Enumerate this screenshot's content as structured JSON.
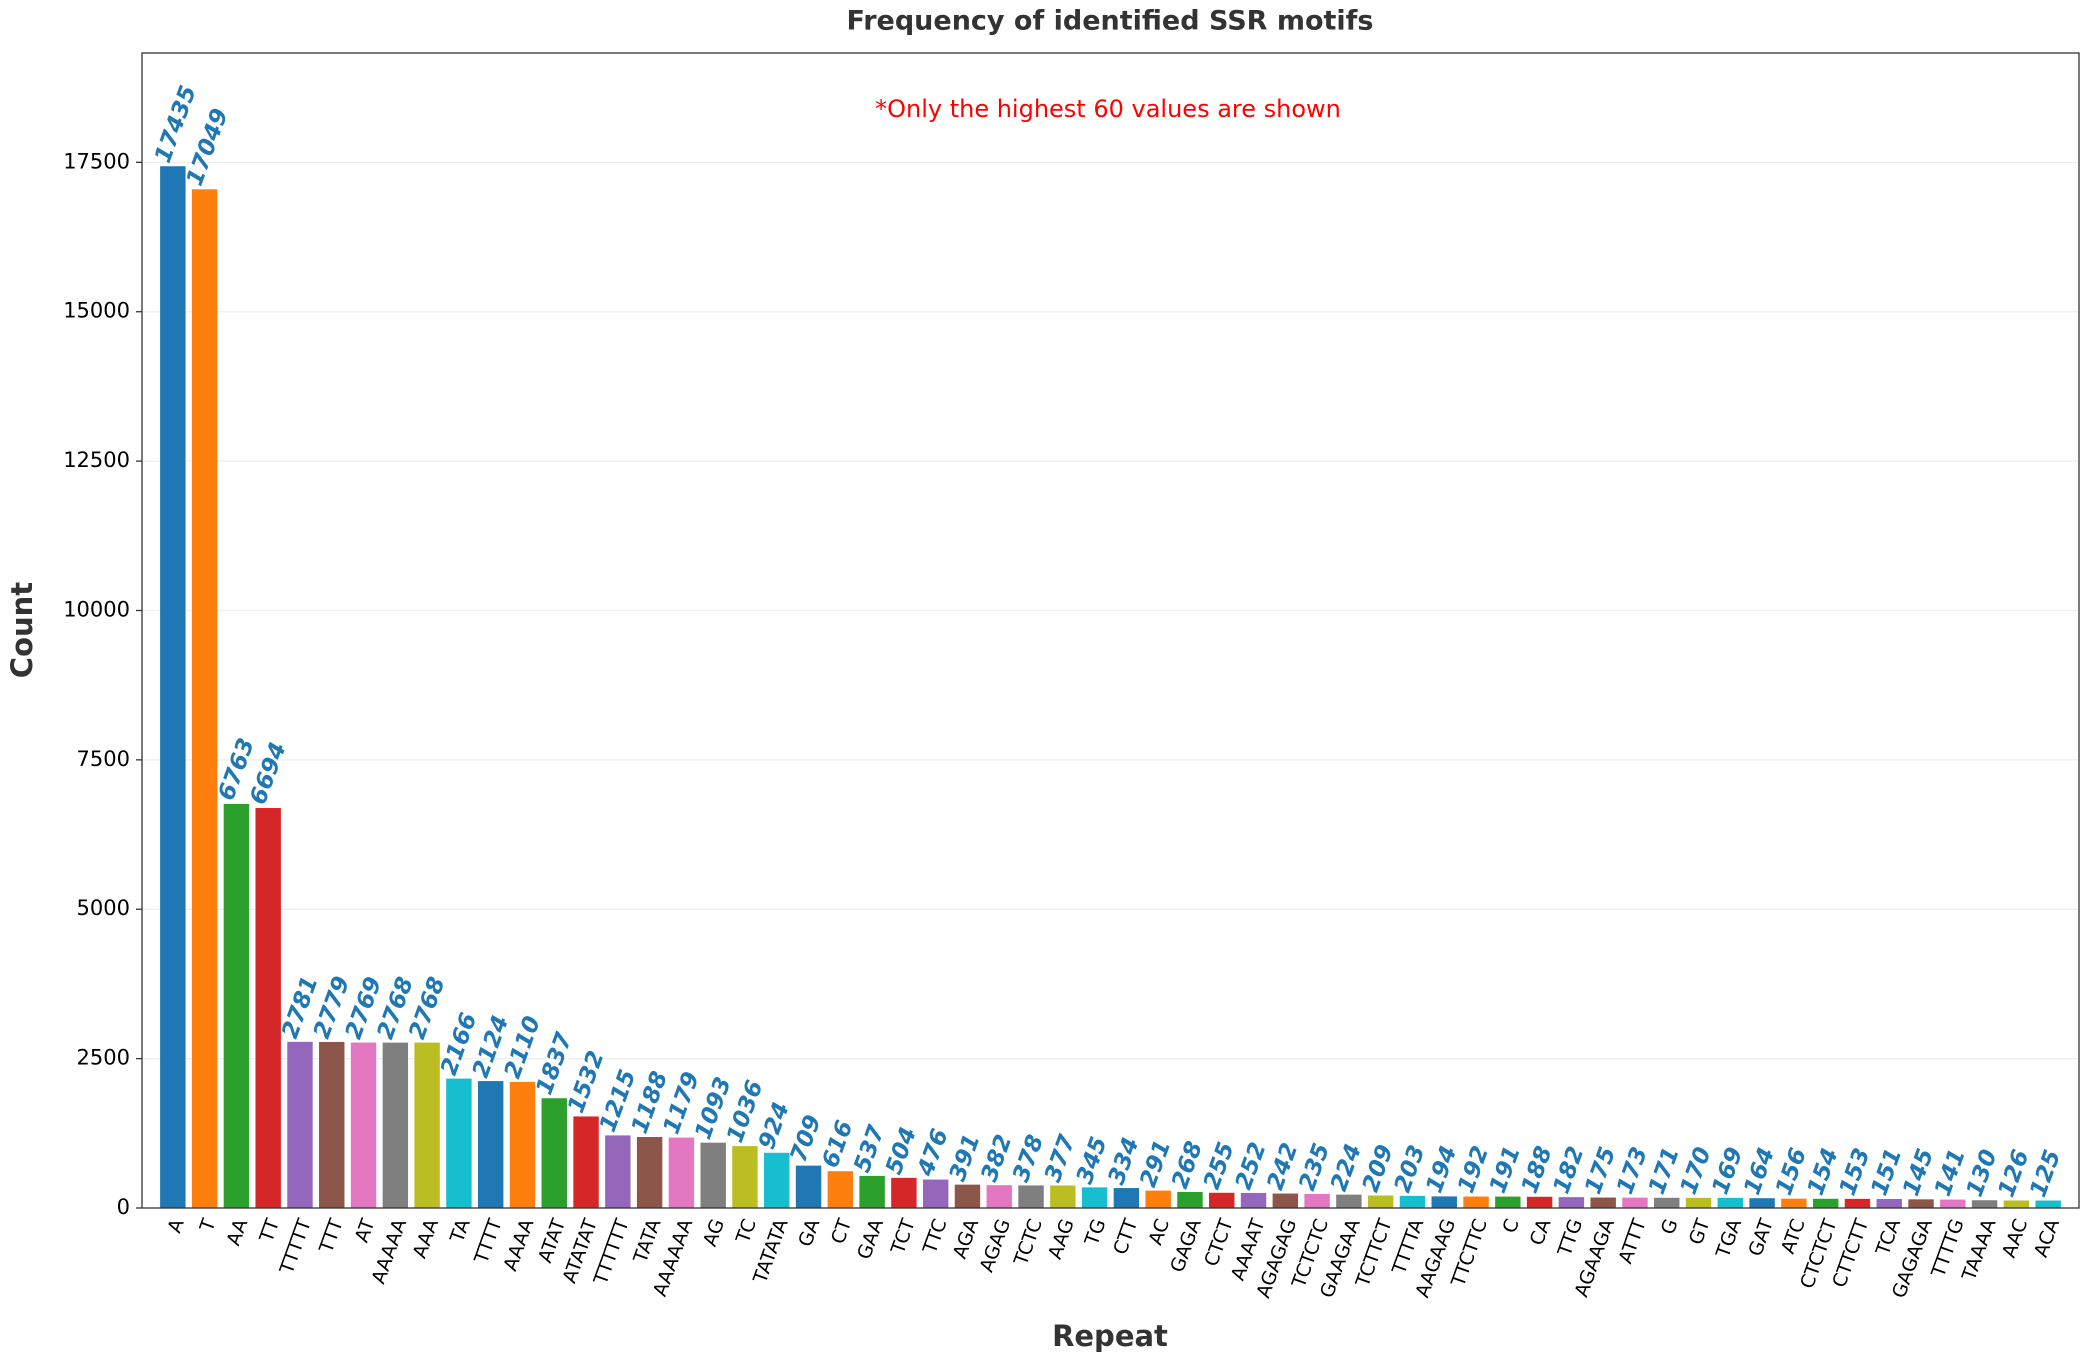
{
  "chart_data": {
    "type": "bar",
    "title": "Frequency of identified SSR motifs",
    "annotation": "*Only the highest 60 values are shown",
    "x_label": "Repeat",
    "y_label": "Count",
    "categories": [
      "A",
      "T",
      "AA",
      "TT",
      "TTTTT",
      "TTT",
      "AT",
      "AAAAA",
      "AAA",
      "TA",
      "TTTT",
      "AAAA",
      "ATAT",
      "ATATAT",
      "TTTTTT",
      "TATA",
      "AAAAAA",
      "AG",
      "TC",
      "TATATA",
      "GA",
      "CT",
      "GAA",
      "TCT",
      "TTC",
      "AGA",
      "AGAG",
      "TCTC",
      "AAG",
      "TG",
      "CTT",
      "AC",
      "GAGA",
      "CTCT",
      "AAAAT",
      "AGAGAG",
      "TCTCTC",
      "GAAGAA",
      "TCTTCT",
      "TTTTA",
      "AAGAAG",
      "TTCTTC",
      "C",
      "CA",
      "TTG",
      "AGAAGA",
      "ATTT",
      "G",
      "GT",
      "TGA",
      "GAT",
      "ATC",
      "CTCTCT",
      "CTTCTT",
      "TCA",
      "GAGAGA",
      "TTTTG",
      "TAAAA",
      "AAC",
      "ACA"
    ],
    "values": [
      17435,
      17049,
      6763,
      6694,
      2781,
      2779,
      2769,
      2768,
      2768,
      2166,
      2124,
      2110,
      1837,
      1532,
      1215,
      1188,
      1179,
      1093,
      1036,
      924,
      709,
      616,
      537,
      504,
      476,
      391,
      382,
      378,
      377,
      345,
      334,
      291,
      268,
      255,
      252,
      242,
      235,
      224,
      209,
      203,
      194,
      192,
      191,
      188,
      182,
      175,
      173,
      171,
      170,
      169,
      164,
      156,
      154,
      153,
      151,
      145,
      141,
      130,
      126,
      125
    ],
    "colors": [
      "#1f77b4",
      "#ff7f0e",
      "#2ca02c",
      "#d62728",
      "#9467bd",
      "#8c564b",
      "#e377c2",
      "#7f7f7f",
      "#bcbd22",
      "#17becf"
    ],
    "value_label_color": "#1f77b4",
    "annotation_color": "#ff0000",
    "ylim": [
      0,
      19330
    ],
    "yticks": [
      0,
      2500,
      5000,
      7500,
      10000,
      12500,
      15000,
      17500
    ],
    "grid": true
  }
}
